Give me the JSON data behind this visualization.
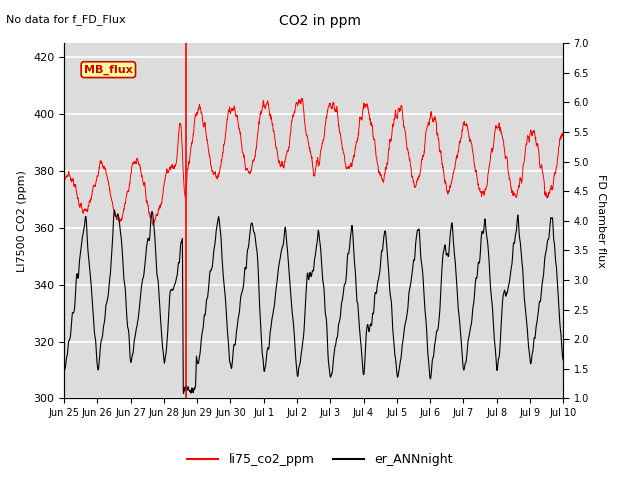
{
  "title": "CO2 in ppm",
  "top_label": "No data for f_FD_Flux",
  "ylabel_left": "LI7500 CO2 (ppm)",
  "ylabel_right": "FD Chamber flux",
  "ylim_left": [
    300,
    425
  ],
  "ylim_right": [
    1.0,
    7.0
  ],
  "yticks_left": [
    300,
    320,
    340,
    360,
    380,
    400,
    420
  ],
  "yticks_right": [
    1.0,
    1.5,
    2.0,
    2.5,
    3.0,
    3.5,
    4.0,
    4.5,
    5.0,
    5.5,
    6.0,
    6.5,
    7.0
  ],
  "xtick_labels": [
    "Jun 25",
    "Jun 26",
    "Jun 27",
    "Jun 28",
    "Jun 29",
    "Jun 30",
    "Jul 1",
    "Jul 2",
    "Jul 3",
    "Jul 4",
    "Jul 5",
    "Jul 6",
    "Jul 7",
    "Jul 8",
    "Jul 9",
    "Jul 10"
  ],
  "legend_entries": [
    "li75_co2_ppm",
    "er_ANNnight"
  ],
  "line_colors": [
    "red",
    "black"
  ],
  "mb_flux_box_color": "#ffff99",
  "mb_flux_border_color": "#cc0000",
  "mb_flux_text_color": "#cc0000",
  "bg_color": "#dcdcdc",
  "grid_color": "white",
  "vline_x": 3.67,
  "vline_color": "red"
}
